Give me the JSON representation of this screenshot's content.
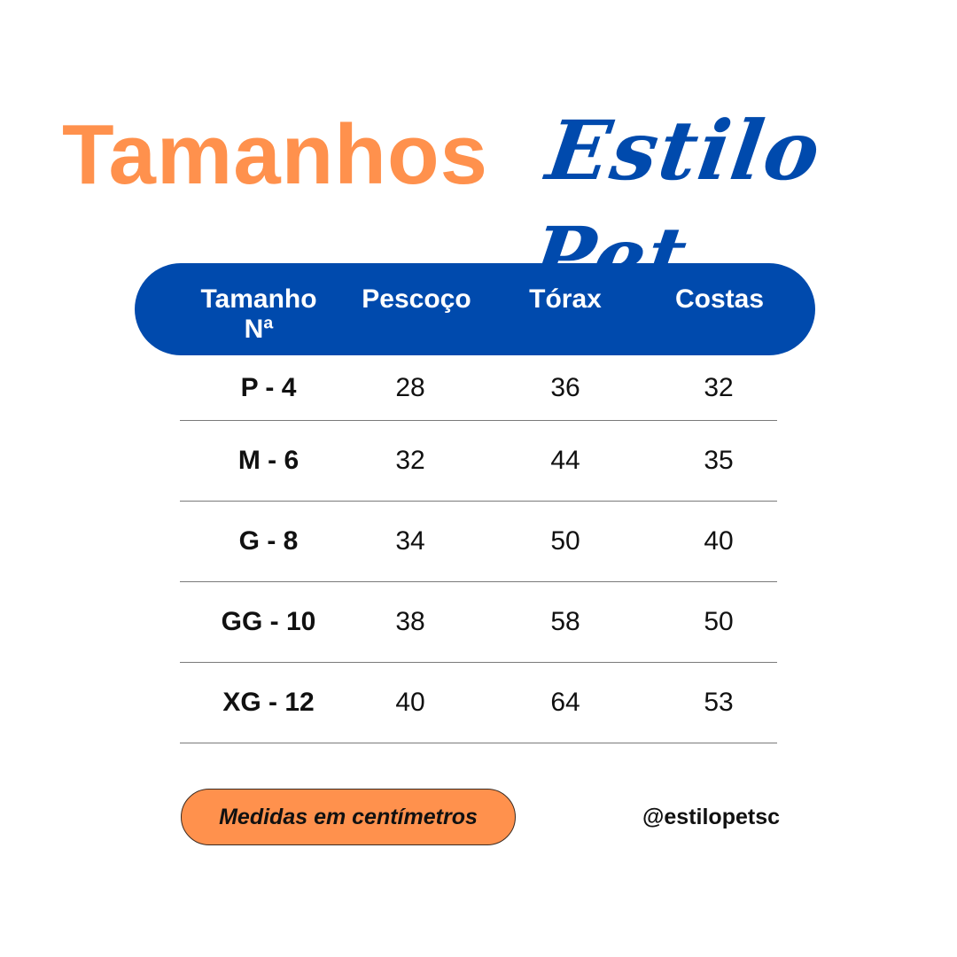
{
  "title": {
    "main": "Tamanhos",
    "brand": "Estilo Pet"
  },
  "table": {
    "headers": {
      "size": "Tamanho Nª",
      "neck": "Pescoço",
      "chest": "Tórax",
      "back": "Costas"
    },
    "rows": [
      {
        "size": "P - 4",
        "neck": "28",
        "chest": "36",
        "back": "32"
      },
      {
        "size": "M - 6",
        "neck": "32",
        "chest": "44",
        "back": "35"
      },
      {
        "size": "G - 8",
        "neck": "34",
        "chest": "50",
        "back": "40"
      },
      {
        "size": "GG - 10",
        "neck": "38",
        "chest": "58",
        "back": "50"
      },
      {
        "size": "XG - 12",
        "neck": "40",
        "chest": "64",
        "back": "53"
      }
    ]
  },
  "footer": {
    "note": "Medidas em centímetros",
    "handle": "@estilopetsc"
  },
  "colors": {
    "orange": "#ff914d",
    "blue": "#004aad"
  }
}
